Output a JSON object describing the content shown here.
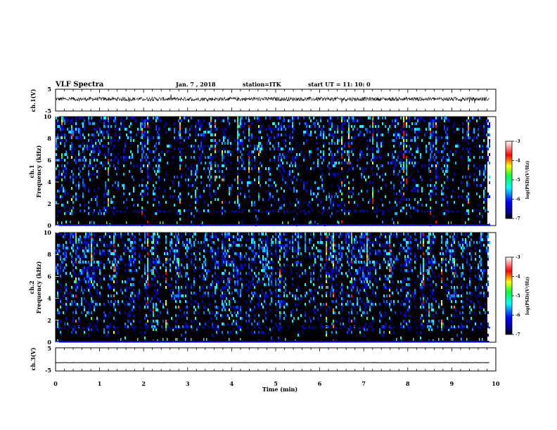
{
  "header": {
    "title": "VLF Spectra",
    "date": "Jan. 7 , 2018",
    "station": "station=ITK",
    "start_ut": "start UT =  11: 10: 0"
  },
  "chart_data": [
    {
      "name": "ch1-waveform",
      "type": "line",
      "ylabel": "ch.1(V)",
      "ylim": [
        -5,
        5
      ],
      "y_tick_labels": [
        "5",
        "-5"
      ],
      "xlim": [
        0,
        10
      ],
      "x_end_min": 9.85,
      "mean_value": 0.5,
      "noise_amplitude": 0.9
    },
    {
      "name": "ch1-spectrogram",
      "type": "heatmap",
      "ylabel_line1": "ch.1",
      "ylabel_line2": "Frequency (kHz)",
      "ylim": [
        0,
        10
      ],
      "y_tick_labels": [
        "0",
        "2",
        "4",
        "6",
        "8",
        "10"
      ],
      "xlim": [
        0,
        10
      ],
      "x_end_min": 9.85,
      "colorbar": {
        "label": "log(PSD)(V²/Hz)",
        "range": [
          -7,
          -3
        ],
        "tick_labels": [
          "-3",
          "-4",
          "-5",
          "-6",
          "-7"
        ]
      }
    },
    {
      "name": "ch2-spectrogram",
      "type": "heatmap",
      "ylabel_line1": "ch.2",
      "ylabel_line2": "Frequency (kHz)",
      "ylim": [
        0,
        10
      ],
      "y_tick_labels": [
        "0",
        "2",
        "4",
        "6",
        "8",
        "10"
      ],
      "xlim": [
        0,
        10
      ],
      "x_end_min": 9.85,
      "colorbar": {
        "label": "log(PSD)(V²/Hz)",
        "range": [
          -7,
          -3
        ],
        "tick_labels": [
          "-3",
          "-4",
          "-5",
          "-6",
          "-7"
        ]
      }
    },
    {
      "name": "ch3-waveform",
      "type": "line",
      "ylabel": "ch.3(V)",
      "ylim": [
        -5,
        5
      ],
      "y_tick_labels": [
        "5",
        "-5"
      ],
      "xlim": [
        0,
        10
      ],
      "x_end_min": 9.85,
      "mean_value": -1.4,
      "noise_amplitude": 0.05
    }
  ],
  "x_axis": {
    "label": "Time (min)",
    "tick_labels": [
      "0",
      "1",
      "2",
      "3",
      "4",
      "5",
      "6",
      "7",
      "8",
      "9",
      "10"
    ]
  },
  "colors": {
    "frame": "#000000",
    "background": "#000000",
    "waveform": "#000000"
  }
}
